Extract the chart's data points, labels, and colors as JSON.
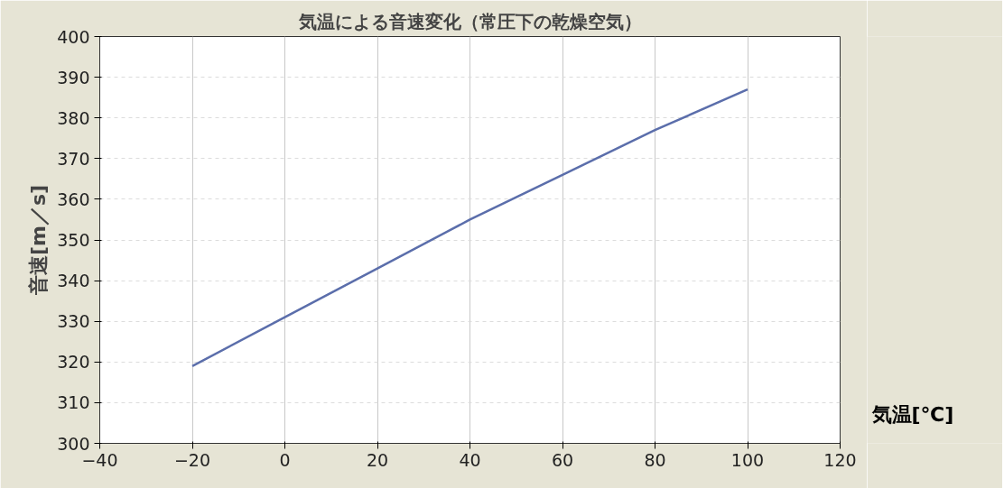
{
  "chart_data": {
    "type": "line",
    "title": "気温による音速変化（常圧下の乾燥空気）",
    "xlabel": "気温[℃]",
    "ylabel": "音速[m／s]",
    "x": [
      -20,
      0,
      20,
      40,
      60,
      80,
      100
    ],
    "series": [
      {
        "color": "#5b6eab",
        "values": [
          319,
          331,
          343,
          355,
          366,
          377,
          387
        ]
      }
    ],
    "xlim": [
      -40,
      120
    ],
    "xticks": [
      -40,
      -20,
      0,
      20,
      40,
      60,
      80,
      100,
      120
    ],
    "ylim": [
      300,
      400
    ],
    "yticks": [
      300,
      310,
      320,
      330,
      340,
      350,
      360,
      370,
      380,
      390,
      400
    ],
    "grid": true,
    "marker": "none",
    "line_style": "solid"
  }
}
